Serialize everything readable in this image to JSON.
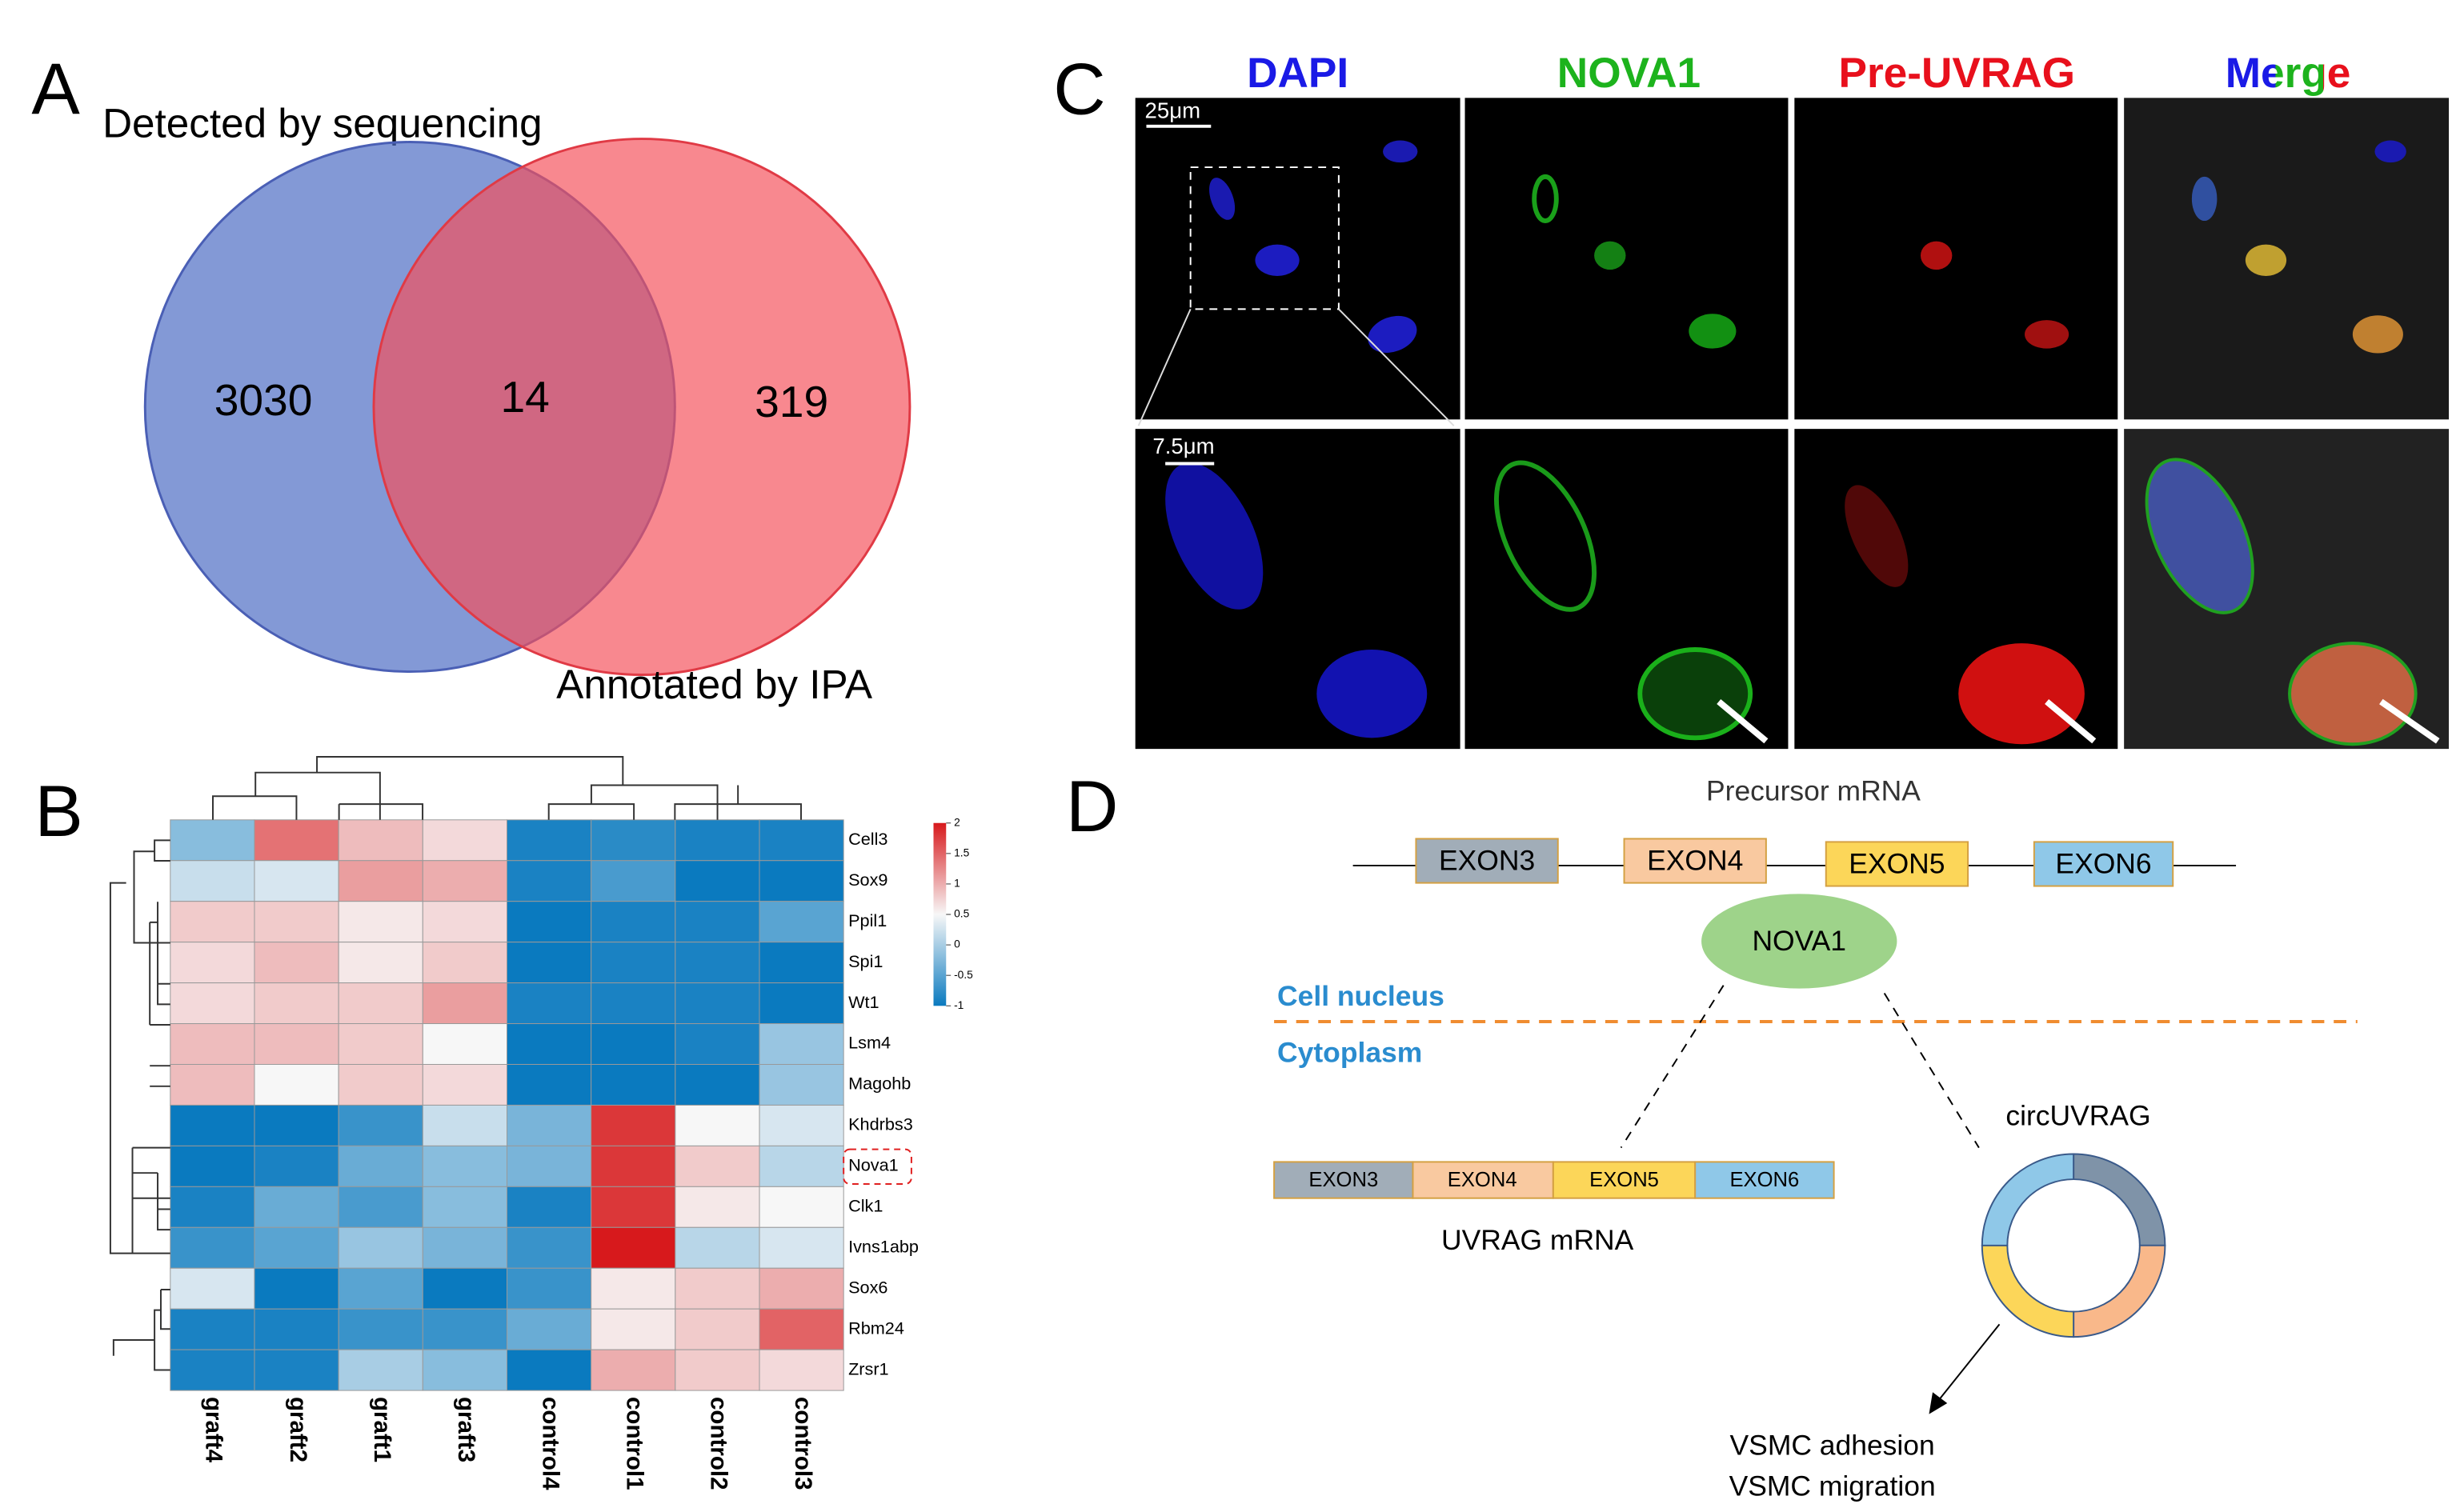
{
  "panel_labels": [
    "A",
    "B",
    "C",
    "D"
  ],
  "venn": {
    "sets": [
      "Detected by sequencing",
      "Annotated by IPA"
    ],
    "counts": [
      3030,
      14,
      319
    ]
  },
  "heatmap": {
    "genes": [
      "Cell3",
      "Sox9",
      "Ppil1",
      "Spi1",
      "Wt1",
      "Lsm4",
      "Magohb",
      "Khdrbs3",
      "Nova1",
      "Clk1",
      "Ivns1abp",
      "Sox6",
      "Rbm24",
      "Zrsr1"
    ],
    "samples": [
      "graft4",
      "graft2",
      "graft1",
      "graft3",
      "control4",
      "control1",
      "control2",
      "control3"
    ],
    "values": [
      [
        -0.2,
        1.4,
        0.9,
        0.7,
        -0.9,
        -0.8,
        -0.9,
        -0.9
      ],
      [
        0.2,
        0.3,
        1.1,
        1.0,
        -0.9,
        -0.6,
        -1.0,
        -1.0
      ],
      [
        0.8,
        0.8,
        0.6,
        0.7,
        -1.0,
        -0.9,
        -0.9,
        -0.5
      ],
      [
        0.7,
        0.9,
        0.6,
        0.8,
        -1.0,
        -0.9,
        -0.9,
        -1.0
      ],
      [
        0.7,
        0.8,
        0.8,
        1.1,
        -0.9,
        -0.9,
        -0.9,
        -1.0
      ],
      [
        0.9,
        0.9,
        0.8,
        0.5,
        -1.0,
        -1.1,
        -0.9,
        -0.1
      ],
      [
        0.9,
        0.5,
        0.8,
        0.7,
        -1.1,
        -1.0,
        -1.0,
        -0.1
      ],
      [
        -1.0,
        -1.0,
        -0.7,
        0.2,
        -0.3,
        1.8,
        0.5,
        0.3
      ],
      [
        -1.0,
        -0.9,
        -0.4,
        -0.2,
        -0.3,
        1.8,
        0.8,
        0.1
      ],
      [
        -0.9,
        -0.4,
        -0.6,
        -0.2,
        -0.9,
        1.8,
        0.6,
        0.5
      ],
      [
        -0.7,
        -0.5,
        -0.1,
        -0.3,
        -0.7,
        2.0,
        0.1,
        0.3
      ],
      [
        0.3,
        -1.1,
        -0.5,
        -1.0,
        -0.7,
        0.6,
        0.8,
        1.0
      ],
      [
        -0.9,
        -0.9,
        -0.7,
        -0.7,
        -0.4,
        0.6,
        0.8,
        1.5
      ],
      [
        -0.9,
        -0.9,
        0.0,
        -0.2,
        -1.0,
        1.0,
        0.8,
        0.7
      ]
    ],
    "colorbar_ticks": [
      2,
      1.5,
      1,
      0.5,
      0,
      -0.5,
      -1
    ]
  },
  "microscopy": {
    "channels": [
      "DAPI",
      "NOVA1",
      "Pre-UVRAG",
      "Merge"
    ],
    "scale_bars": [
      "25μm",
      "7.5μm"
    ]
  },
  "diagram": {
    "precursor_label": "Precursor mRNA",
    "exons": [
      "EXON3",
      "EXON4",
      "EXON5",
      "EXON6"
    ],
    "protein": "NOVA1",
    "compartments": [
      "Cell nucleus",
      "Cytoplasm"
    ],
    "mrna_label": "UVRAG mRNA",
    "circ_label": "circUVRAG",
    "outcomes": [
      "VSMC adhesion",
      "VSMC migration"
    ]
  }
}
